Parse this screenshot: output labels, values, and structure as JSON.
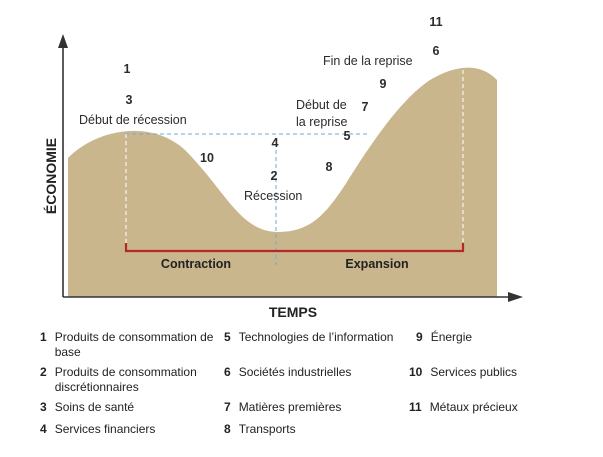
{
  "diagram": {
    "y_axis_label": "ÉCONOMIE",
    "x_axis_label": "TEMPS",
    "curve_labels": {
      "debut_recession": "Début de récession",
      "recession": "Récession",
      "debut_reprise_line1": "Début de",
      "debut_reprise_line2": "la reprise",
      "fin_reprise": "Fin de la reprise"
    },
    "phases": {
      "contraction": "Contraction",
      "expansion": "Expansion"
    },
    "markers": [
      "1",
      "3",
      "10",
      "4",
      "2",
      "8",
      "5",
      "7",
      "9",
      "6",
      "11"
    ]
  },
  "colors": {
    "curve_fill": "#c9b68d",
    "phase_bar": "#b5282a",
    "guide": "#6fa8d6",
    "axis": "#333333"
  },
  "legend": [
    {
      "num": "1",
      "text": "Produits de consommation de base"
    },
    {
      "num": "2",
      "text": "Produits de consommation discrétionnaires"
    },
    {
      "num": "3",
      "text": "Soins de santé"
    },
    {
      "num": "4",
      "text": "Services financiers"
    },
    {
      "num": "5",
      "text": "Technologies de l’information"
    },
    {
      "num": "6",
      "text": "Sociétés industrielles"
    },
    {
      "num": "7",
      "text": "Matières premières"
    },
    {
      "num": "8",
      "text": "Transports"
    },
    {
      "num": "9",
      "text": "Énergie"
    },
    {
      "num": "10",
      "text": "Services publics"
    },
    {
      "num": "11",
      "text": "Métaux précieux"
    }
  ]
}
